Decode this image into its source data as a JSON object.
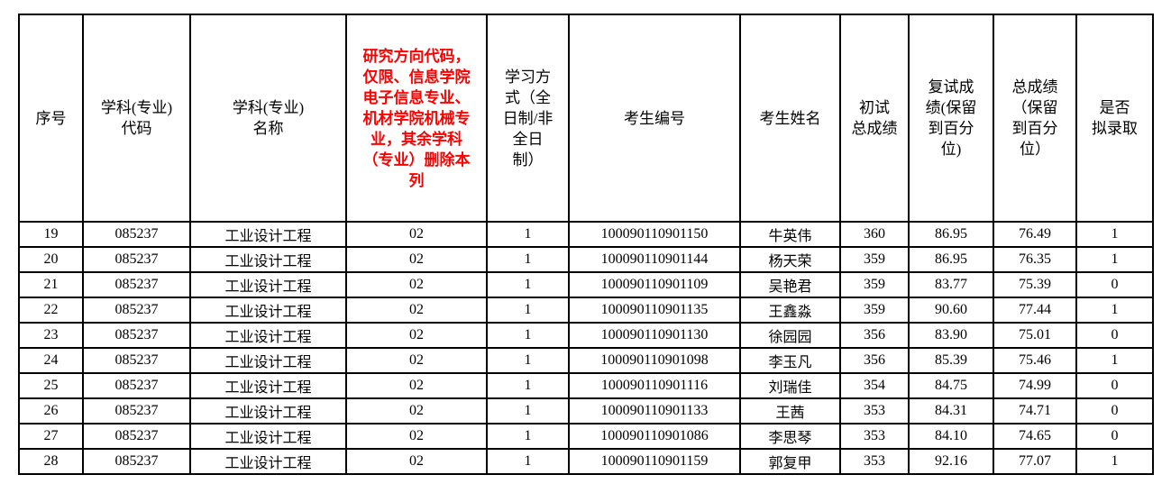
{
  "colors": {
    "background": "#ffffff",
    "border": "#000000",
    "text": "#000000",
    "warning_text": "#ff0000"
  },
  "table": {
    "columns": [
      {
        "id": "seq",
        "label": "序号",
        "warning": false
      },
      {
        "id": "subject-code",
        "label": "学科(专业)\n代码",
        "warning": false
      },
      {
        "id": "subject-name",
        "label": "学科(专业)\n名称",
        "warning": false
      },
      {
        "id": "research-direction-note",
        "label": "研究方向代码，\n仅限、信息学院\n电子信息专业、\n机材学院机械专\n业，其余学科\n（专业）删除本\n列",
        "warning": true
      },
      {
        "id": "study-mode",
        "label": "学习方\n式（全\n日制/非\n全日\n制）",
        "warning": false
      },
      {
        "id": "candidate-id",
        "label": "考生编号",
        "warning": false
      },
      {
        "id": "candidate-name",
        "label": "考生姓名",
        "warning": false
      },
      {
        "id": "initial-score",
        "label": "初试\n总成绩",
        "warning": false
      },
      {
        "id": "retest-score",
        "label": "复试成\n绩(保留\n到百分\n位)",
        "warning": false
      },
      {
        "id": "total-score",
        "label": "总成绩\n（保留\n到百分\n位）",
        "warning": false
      },
      {
        "id": "admitted",
        "label": "是否\n拟录取",
        "warning": false
      }
    ],
    "rows": [
      [
        "19",
        "085237",
        "工业设计工程",
        "02",
        "1",
        "100090110901150",
        "牛英伟",
        "360",
        "86.95",
        "76.49",
        "1"
      ],
      [
        "20",
        "085237",
        "工业设计工程",
        "02",
        "1",
        "100090110901144",
        "杨天荣",
        "359",
        "86.95",
        "76.35",
        "1"
      ],
      [
        "21",
        "085237",
        "工业设计工程",
        "02",
        "1",
        "100090110901109",
        "吴艳君",
        "359",
        "83.77",
        "75.39",
        "0"
      ],
      [
        "22",
        "085237",
        "工业设计工程",
        "02",
        "1",
        "100090110901135",
        "王鑫淼",
        "359",
        "90.60",
        "77.44",
        "1"
      ],
      [
        "23",
        "085237",
        "工业设计工程",
        "02",
        "1",
        "100090110901130",
        "徐园园",
        "356",
        "83.90",
        "75.01",
        "0"
      ],
      [
        "24",
        "085237",
        "工业设计工程",
        "02",
        "1",
        "100090110901098",
        "李玉凡",
        "356",
        "85.39",
        "75.46",
        "1"
      ],
      [
        "25",
        "085237",
        "工业设计工程",
        "02",
        "1",
        "100090110901116",
        "刘瑞佳",
        "354",
        "84.75",
        "74.99",
        "0"
      ],
      [
        "26",
        "085237",
        "工业设计工程",
        "02",
        "1",
        "100090110901133",
        "王茜",
        "353",
        "84.31",
        "74.71",
        "0"
      ],
      [
        "27",
        "085237",
        "工业设计工程",
        "02",
        "1",
        "100090110901086",
        "李思琴",
        "353",
        "84.10",
        "74.65",
        "0"
      ],
      [
        "28",
        "085237",
        "工业设计工程",
        "02",
        "1",
        "100090110901159",
        "郭复甲",
        "353",
        "92.16",
        "77.07",
        "1"
      ]
    ]
  }
}
